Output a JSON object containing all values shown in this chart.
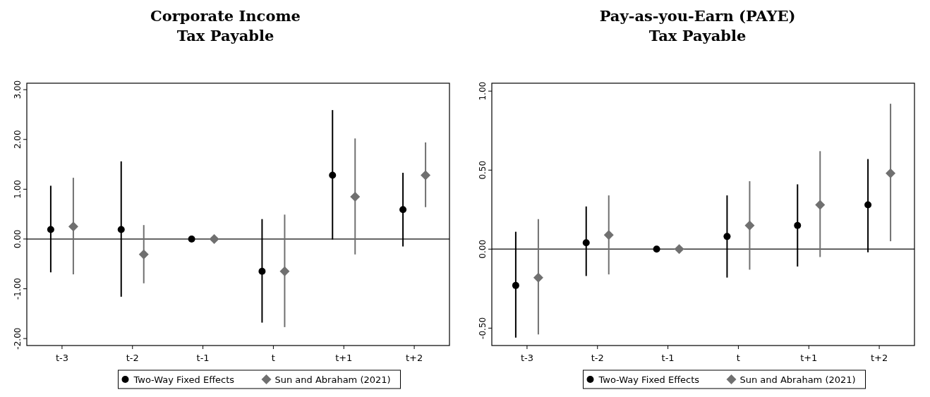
{
  "chart_data": [
    {
      "type": "scatter",
      "title": "Corporate Income\nTax Payable",
      "categories": [
        "t-3",
        "t-2",
        "t-1",
        "t",
        "t+1",
        "t+2"
      ],
      "series": [
        {
          "name": "Two-Way Fixed Effects",
          "color": "#000000",
          "marker": "circle",
          "values": [
            0.19,
            0.19,
            0,
            -0.65,
            1.28,
            0.59
          ],
          "errors": [
            [
              -0.67,
              1.07
            ],
            [
              -1.16,
              1.56
            ],
            null,
            [
              -1.68,
              0.4
            ],
            [
              -0.01,
              2.59
            ],
            [
              -0.15,
              1.33
            ]
          ]
        },
        {
          "name": "Sun and Abraham (2021)",
          "color": "#707070",
          "marker": "diamond",
          "values": [
            0.25,
            -0.31,
            0,
            -0.65,
            0.85,
            1.28
          ],
          "errors": [
            [
              -0.71,
              1.23
            ],
            [
              -0.89,
              0.28
            ],
            null,
            [
              -1.77,
              0.49
            ],
            [
              -0.31,
              2.02
            ],
            [
              0.64,
              1.94
            ]
          ]
        }
      ],
      "ylim": [
        -2.14,
        3.13
      ],
      "yticks": [
        {
          "value": -2,
          "label": "-2.00"
        },
        {
          "value": -1,
          "label": "-1.00"
        },
        {
          "value": 0,
          "label": "0.00"
        },
        {
          "value": 1,
          "label": "1.00"
        },
        {
          "value": 2,
          "label": "2.00"
        },
        {
          "value": 3,
          "label": "3.00"
        }
      ],
      "ref_lines": [
        {
          "axis": "y",
          "value": 0
        }
      ],
      "grid": false,
      "legend": "bottom"
    },
    {
      "type": "scatter",
      "title": "Pay-as-you-Earn (PAYE)\nTax Payable",
      "categories": [
        "t-3",
        "t-2",
        "t-1",
        "t",
        "t+1",
        "t+2"
      ],
      "series": [
        {
          "name": "Two-Way Fixed Effects",
          "color": "#000000",
          "marker": "circle",
          "values": [
            -0.23,
            0.04,
            0,
            0.08,
            0.15,
            0.28
          ],
          "errors": [
            [
              -0.56,
              0.11
            ],
            [
              -0.17,
              0.27
            ],
            null,
            [
              -0.18,
              0.34
            ],
            [
              -0.11,
              0.41
            ],
            [
              -0.02,
              0.57
            ]
          ]
        },
        {
          "name": "Sun and Abraham (2021)",
          "color": "#707070",
          "marker": "diamond",
          "values": [
            -0.18,
            0.09,
            0,
            0.15,
            0.28,
            0.48
          ],
          "errors": [
            [
              -0.54,
              0.19
            ],
            [
              -0.16,
              0.34
            ],
            null,
            [
              -0.13,
              0.43
            ],
            [
              -0.05,
              0.62
            ],
            [
              0.05,
              0.92
            ]
          ]
        }
      ],
      "ylim": [
        -0.61,
        1.05
      ],
      "yticks": [
        {
          "value": -0.5,
          "label": "-0.50"
        },
        {
          "value": 0,
          "label": "0.00"
        },
        {
          "value": 0.5,
          "label": "0.50"
        },
        {
          "value": 1,
          "label": "1.00"
        }
      ],
      "ref_lines": [
        {
          "axis": "y",
          "value": 0
        }
      ],
      "grid": false,
      "legend": "bottom"
    }
  ]
}
